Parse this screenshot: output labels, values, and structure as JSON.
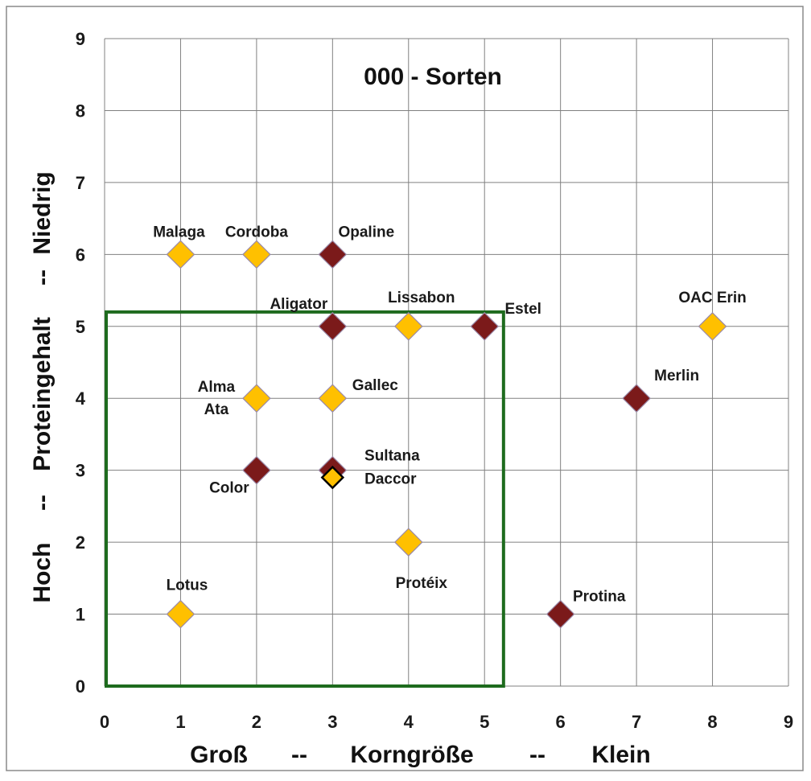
{
  "chart_data": {
    "type": "scatter",
    "title": "000 - Sorten",
    "xlabel": "Groß -- Korngröße -- Klein",
    "ylabel": "Hoch -- Proteingehalt -- Niedrig",
    "xlabel_parts": [
      "Groß",
      "--",
      "Korngröße",
      "--",
      "Klein"
    ],
    "ylabel_parts": [
      "Hoch",
      "--",
      "Proteingehalt",
      "--",
      "Niedrig"
    ],
    "xlim": [
      0,
      9
    ],
    "ylim": [
      0,
      9
    ],
    "xticks": [
      "0",
      "1",
      "2",
      "3",
      "4",
      "5",
      "6",
      "7",
      "8",
      "9"
    ],
    "yticks": [
      "0",
      "1",
      "2",
      "3",
      "4",
      "5",
      "6",
      "7",
      "8",
      "9"
    ],
    "grid": true,
    "legend": "none",
    "colors": {
      "orange": "#FFC000",
      "dark_red": "#7B1A1A",
      "highlight_box": "#1E6B1E",
      "grid": "#808080"
    },
    "highlight_region": {
      "x": [
        0,
        5.25
      ],
      "y": [
        0,
        5.2
      ]
    },
    "points": [
      {
        "label": "Malaga",
        "x": 1,
        "y": 6,
        "color": "orange"
      },
      {
        "label": "Cordoba",
        "x": 2,
        "y": 6,
        "color": "orange"
      },
      {
        "label": "Opaline",
        "x": 3,
        "y": 6,
        "color": "dark_red"
      },
      {
        "label": "Aligator",
        "x": 3,
        "y": 5,
        "color": "dark_red"
      },
      {
        "label": "Lissabon",
        "x": 4,
        "y": 5,
        "color": "orange"
      },
      {
        "label": "Estel",
        "x": 5,
        "y": 5,
        "color": "dark_red"
      },
      {
        "label": "OAC Erin",
        "x": 8,
        "y": 5,
        "color": "orange"
      },
      {
        "label": "Alma Ata",
        "x": 2,
        "y": 4,
        "color": "orange"
      },
      {
        "label": "Gallec",
        "x": 3,
        "y": 4,
        "color": "orange"
      },
      {
        "label": "Merlin",
        "x": 7,
        "y": 4,
        "color": "dark_red"
      },
      {
        "label": "Color",
        "x": 2,
        "y": 3,
        "color": "dark_red"
      },
      {
        "label": "Sultana",
        "x": 3,
        "y": 3,
        "color": "dark_red"
      },
      {
        "label": "Daccor",
        "x": 3,
        "y": 2.9,
        "color": "orange",
        "outlined": true
      },
      {
        "label": "Protéix",
        "x": 4,
        "y": 2,
        "color": "orange"
      },
      {
        "label": "Lotus",
        "x": 1,
        "y": 1,
        "color": "orange"
      },
      {
        "label": "Protina",
        "x": 6,
        "y": 1,
        "color": "dark_red"
      }
    ]
  }
}
